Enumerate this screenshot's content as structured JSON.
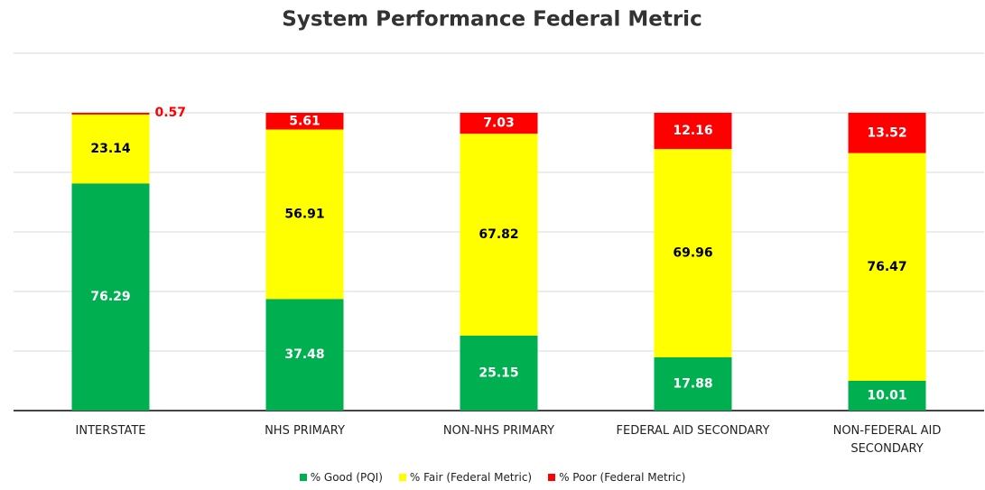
{
  "chart_data": {
    "type": "stacked_bar",
    "title": "System Performance Federal Metric",
    "categories": [
      "INTERSTATE",
      "NHS PRIMARY",
      "NON-NHS PRIMARY",
      "FEDERAL AID SECONDARY",
      "NON-FEDERAL AID SECONDARY"
    ],
    "series": [
      {
        "name": "% Good (PQI)",
        "color": "#00b050",
        "label_color": "#ffffff",
        "values": [
          76.29,
          37.48,
          25.15,
          17.88,
          10.01
        ]
      },
      {
        "name": "% Fair (Federal Metric)",
        "color": "#ffff00",
        "label_color": "#000000",
        "values": [
          23.14,
          56.91,
          67.82,
          69.96,
          76.47
        ]
      },
      {
        "name": "% Poor (Federal Metric)",
        "color": "#ff0000",
        "label_color": "#ffffff",
        "values": [
          0.57,
          5.61,
          7.03,
          12.16,
          13.52
        ]
      }
    ],
    "ylim": [
      0,
      120
    ],
    "yticks": [
      0,
      20,
      40,
      60,
      80,
      100,
      120
    ],
    "grid": true,
    "legend": "bottom"
  }
}
